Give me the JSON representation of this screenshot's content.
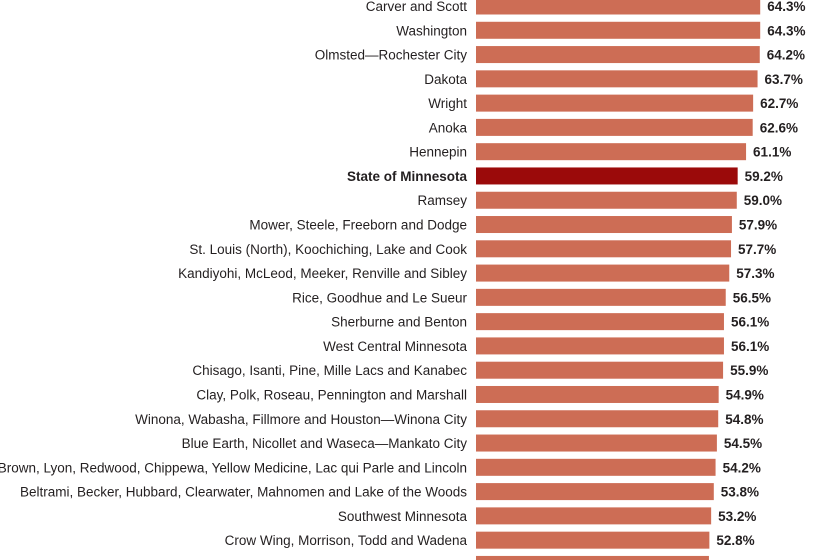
{
  "chart_data": {
    "type": "bar",
    "orientation": "horizontal",
    "title": "",
    "xlabel": "",
    "ylabel": "",
    "xlim": [
      0,
      70
    ],
    "grid": false,
    "value_suffix": "%",
    "colors": {
      "bar": "#cd6d55",
      "highlight": "#9b0a0a"
    },
    "categories": [
      "Carver and Scott",
      "Washington",
      "Olmsted—Rochester City",
      "Dakota",
      "Wright",
      "Anoka",
      "Hennepin",
      "State of Minnesota",
      "Ramsey",
      "Mower, Steele, Freeborn and Dodge",
      "St. Louis (North), Koochiching, Lake and Cook",
      "Kandiyohi, McLeod, Meeker, Renville and Sibley",
      "Rice, Goodhue and Le Sueur",
      "Sherburne and Benton",
      "West Central Minnesota",
      "Chisago, Isanti, Pine, Mille Lacs and Kanabec",
      "Clay, Polk, Roseau, Pennington and Marshall",
      "Winona, Wabasha, Fillmore and Houston—Winona City",
      "Blue Earth, Nicollet and Waseca—Mankato City",
      "Brown, Lyon, Redwood, Chippewa, Yellow Medicine, Lac qui Parle and Lincoln",
      "Beltrami, Becker, Hubbard, Clearwater, Mahnomen and Lake of the Woods",
      "Southwest Minnesota",
      "Crow Wing, Morrison, Todd and Wadena",
      ""
    ],
    "values": [
      64.3,
      64.3,
      64.2,
      63.7,
      62.7,
      62.6,
      61.1,
      59.2,
      59.0,
      57.9,
      57.7,
      57.3,
      56.5,
      56.1,
      56.1,
      55.9,
      54.9,
      54.8,
      54.5,
      54.2,
      53.8,
      53.2,
      52.8,
      52.7
    ],
    "highlight": [
      7
    ]
  }
}
